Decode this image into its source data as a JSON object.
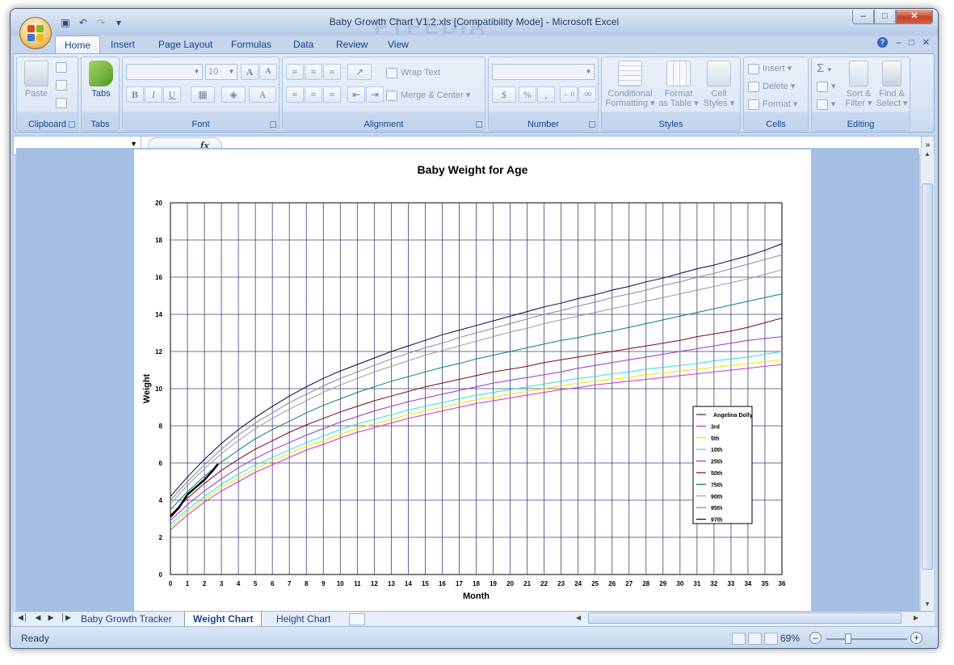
{
  "window": {
    "title": "Baby Growth Chart V1.2.xls  [Compatibility Mode]  -  Microsoft Excel",
    "minimize": "–",
    "maximize": "□",
    "close": "✕"
  },
  "watermark": "FTPEDIA",
  "quick_access": [
    "save-icon",
    "undo-icon",
    "redo-icon",
    "customize-icon"
  ],
  "ribbon_tabs": [
    "Home",
    "Insert",
    "Page Layout",
    "Formulas",
    "Data",
    "Review",
    "View"
  ],
  "ribbon_right": {
    "help": "?",
    "min": "–",
    "restore": "□",
    "close": "✕"
  },
  "groups": {
    "clipboard": {
      "label": "Clipboard",
      "paste": "Paste"
    },
    "tabs": {
      "label": "Tabs",
      "tabs": "Tabs"
    },
    "font": {
      "label": "Font",
      "name_value": "",
      "size_value": "10",
      "grow": "A",
      "shrink": "A",
      "bold": "B",
      "italic": "I",
      "underline": "U",
      "font_color": "A"
    },
    "alignment": {
      "label": "Alignment",
      "wrap": "Wrap Text",
      "merge": "Merge & Center"
    },
    "number": {
      "label": "Number",
      "format_value": "",
      "currency": "$",
      "percent": "%",
      "comma": ",",
      "inc_dec": "←.0",
      "dec_dec": ".00"
    },
    "styles": {
      "label": "Styles",
      "cond1": "Conditional",
      "cond2": "Formatting",
      "fmt1": "Format",
      "fmt2": "as Table",
      "cell1": "Cell",
      "cell2": "Styles"
    },
    "cells": {
      "label": "Cells",
      "insert": "Insert",
      "delete": "Delete",
      "format": "Format"
    },
    "editing": {
      "label": "Editing",
      "sum": "Σ",
      "sort1": "Sort &",
      "sort2": "Filter",
      "find1": "Find &",
      "find2": "Select"
    }
  },
  "formula_bar": {
    "name_box": "",
    "fx": "fx",
    "formula": ""
  },
  "chart_data": {
    "type": "line",
    "title": "Baby Weight for Age",
    "xlabel": "Month",
    "ylabel": "Weight",
    "xlim": [
      0,
      36
    ],
    "ylim": [
      0,
      20
    ],
    "x_ticks": [
      0,
      1,
      2,
      3,
      4,
      5,
      6,
      7,
      8,
      9,
      10,
      11,
      12,
      13,
      14,
      15,
      16,
      17,
      18,
      19,
      20,
      21,
      22,
      23,
      24,
      25,
      26,
      27,
      28,
      29,
      30,
      31,
      32,
      33,
      34,
      35,
      36
    ],
    "y_ticks": [
      0,
      2,
      4,
      6,
      8,
      10,
      12,
      14,
      16,
      18,
      20
    ],
    "x": [
      0,
      1,
      2,
      3,
      4,
      5,
      6,
      7,
      8,
      9,
      10,
      11,
      12,
      13,
      14,
      15,
      16,
      17,
      18,
      19,
      20,
      21,
      22,
      23,
      24,
      25,
      26,
      27,
      28,
      29,
      30,
      31,
      32,
      33,
      34,
      35,
      36
    ],
    "series": [
      {
        "name": "3rd",
        "color": "#cc33cc",
        "values": [
          2.4,
          3.2,
          3.9,
          4.5,
          5.0,
          5.5,
          5.9,
          6.3,
          6.7,
          7.0,
          7.35,
          7.65,
          7.9,
          8.15,
          8.4,
          8.6,
          8.8,
          9.0,
          9.2,
          9.35,
          9.5,
          9.65,
          9.8,
          9.95,
          10.05,
          10.2,
          10.3,
          10.4,
          10.5,
          10.6,
          10.7,
          10.8,
          10.9,
          11.0,
          11.1,
          11.2,
          11.3
        ]
      },
      {
        "name": "5th",
        "color": "#e6e600",
        "values": [
          2.55,
          3.35,
          4.05,
          4.7,
          5.2,
          5.7,
          6.1,
          6.5,
          6.9,
          7.2,
          7.55,
          7.85,
          8.1,
          8.35,
          8.6,
          8.8,
          9.0,
          9.2,
          9.4,
          9.55,
          9.7,
          9.85,
          10.0,
          10.15,
          10.3,
          10.4,
          10.5,
          10.6,
          10.75,
          10.85,
          10.95,
          11.05,
          11.15,
          11.25,
          11.35,
          11.45,
          11.55
        ]
      },
      {
        "name": "10th",
        "color": "#33dddd",
        "values": [
          2.7,
          3.5,
          4.2,
          4.85,
          5.4,
          5.9,
          6.3,
          6.7,
          7.1,
          7.45,
          7.8,
          8.1,
          8.35,
          8.6,
          8.85,
          9.05,
          9.25,
          9.45,
          9.65,
          9.8,
          9.95,
          10.1,
          10.25,
          10.4,
          10.55,
          10.65,
          10.8,
          10.9,
          11.05,
          11.15,
          11.25,
          11.35,
          11.5,
          11.6,
          11.7,
          11.85,
          12.0
        ]
      },
      {
        "name": "25th",
        "color": "#9933cc",
        "values": [
          2.9,
          3.75,
          4.5,
          5.15,
          5.75,
          6.25,
          6.7,
          7.1,
          7.5,
          7.85,
          8.2,
          8.5,
          8.8,
          9.05,
          9.3,
          9.5,
          9.7,
          9.9,
          10.1,
          10.3,
          10.45,
          10.6,
          10.75,
          10.9,
          11.1,
          11.25,
          11.4,
          11.55,
          11.7,
          11.85,
          12.0,
          12.15,
          12.3,
          12.45,
          12.6,
          12.7,
          12.8
        ]
      },
      {
        "name": "50th",
        "color": "#800020",
        "values": [
          3.2,
          4.1,
          4.9,
          5.6,
          6.2,
          6.75,
          7.2,
          7.65,
          8.05,
          8.4,
          8.75,
          9.05,
          9.35,
          9.6,
          9.85,
          10.1,
          10.3,
          10.5,
          10.7,
          10.9,
          11.05,
          11.2,
          11.4,
          11.55,
          11.7,
          11.85,
          12.0,
          12.15,
          12.3,
          12.45,
          12.6,
          12.8,
          12.95,
          13.1,
          13.3,
          13.55,
          13.8
        ]
      },
      {
        "name": "75th",
        "color": "#008080",
        "values": [
          3.5,
          4.45,
          5.3,
          6.05,
          6.7,
          7.3,
          7.8,
          8.25,
          8.7,
          9.1,
          9.45,
          9.8,
          10.1,
          10.4,
          10.65,
          10.9,
          11.15,
          11.35,
          11.6,
          11.8,
          12.0,
          12.2,
          12.4,
          12.6,
          12.75,
          12.95,
          13.1,
          13.3,
          13.5,
          13.7,
          13.9,
          14.1,
          14.3,
          14.5,
          14.7,
          14.9,
          15.1
        ]
      },
      {
        "name": "90th",
        "color": "#999999",
        "values": [
          3.8,
          4.8,
          5.7,
          6.5,
          7.2,
          7.85,
          8.4,
          8.9,
          9.35,
          9.8,
          10.2,
          10.55,
          10.9,
          11.2,
          11.5,
          11.8,
          12.05,
          12.3,
          12.55,
          12.8,
          13.05,
          13.25,
          13.5,
          13.7,
          13.9,
          14.1,
          14.3,
          14.5,
          14.7,
          14.9,
          15.1,
          15.3,
          15.5,
          15.7,
          15.9,
          16.15,
          16.4
        ]
      },
      {
        "name": "95th",
        "color": "#888888",
        "values": [
          4.0,
          5.0,
          5.9,
          6.75,
          7.5,
          8.15,
          8.7,
          9.25,
          9.7,
          10.15,
          10.55,
          10.9,
          11.25,
          11.6,
          11.9,
          12.2,
          12.45,
          12.75,
          13.0,
          13.25,
          13.5,
          13.75,
          14.0,
          14.2,
          14.45,
          14.65,
          14.9,
          15.1,
          15.3,
          15.55,
          15.75,
          16.0,
          16.2,
          16.45,
          16.7,
          16.95,
          17.2
        ]
      },
      {
        "name": "97th",
        "color": "#000044",
        "values": [
          4.2,
          5.25,
          6.2,
          7.05,
          7.8,
          8.45,
          9.05,
          9.6,
          10.1,
          10.55,
          10.95,
          11.3,
          11.65,
          12.0,
          12.3,
          12.6,
          12.9,
          13.15,
          13.4,
          13.65,
          13.9,
          14.15,
          14.4,
          14.6,
          14.85,
          15.05,
          15.3,
          15.5,
          15.75,
          15.95,
          16.2,
          16.45,
          16.65,
          16.9,
          17.15,
          17.45,
          17.8
        ]
      },
      {
        "name": "Angelina Dolly",
        "color": "#000000",
        "x": [
          0,
          0.5,
          1,
          1.5,
          2,
          2.5,
          2.8
        ],
        "values": [
          3.1,
          3.6,
          4.3,
          4.7,
          5.1,
          5.6,
          5.95
        ]
      }
    ],
    "legend": [
      "Angelina Dolly",
      "3rd",
      "5th",
      "10th",
      "25th",
      "50th",
      "75th",
      "90th",
      "95th",
      "97th"
    ],
    "legend_position": "right",
    "grid": true
  },
  "sheet_tabs": [
    "Baby Growth Tracker",
    "Weight Chart",
    "Height Chart"
  ],
  "active_sheet": "Weight Chart",
  "status": {
    "text": "Ready",
    "zoom": "69%",
    "zoom_out": "–",
    "zoom_in": "+"
  }
}
